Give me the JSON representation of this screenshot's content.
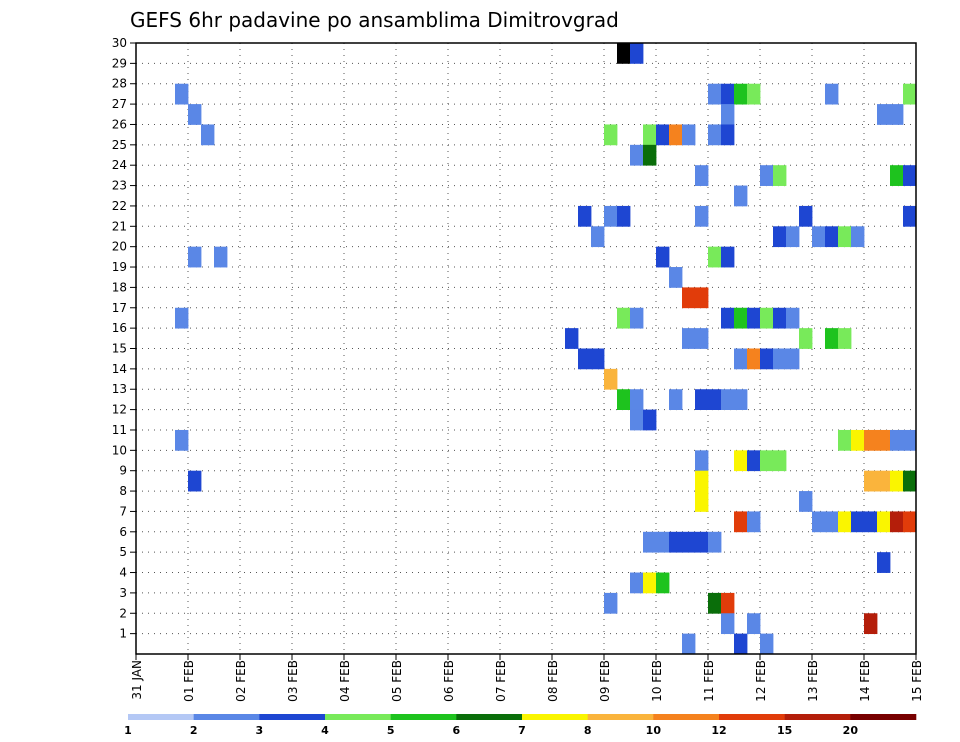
{
  "chart_data": {
    "type": "heatmap",
    "title": "GEFS 6hr padavine po ansamblima Dimitrovgrad",
    "xlabel": "",
    "ylabel": "",
    "x_ticks": [
      "31 JAN",
      "01 FEB",
      "02 FEB",
      "03 FEB",
      "04 FEB",
      "05 FEB",
      "06 FEB",
      "07 FEB",
      "08 FEB",
      "09 FEB",
      "10 FEB",
      "11 FEB",
      "12 FEB",
      "13 FEB",
      "14 FEB",
      "15 FEB"
    ],
    "y_ticks": [
      "1",
      "2",
      "3",
      "4",
      "5",
      "6",
      "7",
      "8",
      "9",
      "10",
      "11",
      "12",
      "13",
      "14",
      "15",
      "16",
      "17",
      "18",
      "19",
      "20",
      "21",
      "22",
      "23",
      "24",
      "25",
      "26",
      "27",
      "28",
      "29",
      "30"
    ],
    "x_range_steps": [
      0,
      60
    ],
    "y_range": [
      0,
      30
    ],
    "grid": true,
    "legend": "bottom",
    "colorbar": {
      "ticks": [
        "1",
        "2",
        "3",
        "4",
        "5",
        "6",
        "7",
        "8",
        "10",
        "12",
        "15",
        "20"
      ],
      "colors": [
        "#b4c8f5",
        "#5a87e6",
        "#1e46d2",
        "#78ea5a",
        "#1ec31e",
        "#0a6e0a",
        "#faf500",
        "#fab43c",
        "#f5821e",
        "#e13c0a",
        "#b41e0a",
        "#780000"
      ]
    },
    "cells": [
      {
        "t": 3,
        "m": 27,
        "v": 1
      },
      {
        "t": 4,
        "m": 26,
        "v": 1
      },
      {
        "t": 5,
        "m": 25,
        "v": 1
      },
      {
        "t": 4,
        "m": 19,
        "v": 1
      },
      {
        "t": 6,
        "m": 19,
        "v": 1
      },
      {
        "t": 3,
        "m": 16,
        "v": 1
      },
      {
        "t": 3,
        "m": 10,
        "v": 1
      },
      {
        "t": 4,
        "m": 8,
        "v": 2
      },
      {
        "t": 37,
        "m": 29,
        "v": 12
      },
      {
        "t": 38,
        "m": 29,
        "v": 2
      },
      {
        "t": 44,
        "m": 27,
        "v": 1
      },
      {
        "t": 45,
        "m": 27,
        "v": 2
      },
      {
        "t": 46,
        "m": 27,
        "v": 4
      },
      {
        "t": 47,
        "m": 27,
        "v": 3
      },
      {
        "t": 53,
        "m": 27,
        "v": 1
      },
      {
        "t": 59,
        "m": 27,
        "v": 3
      },
      {
        "t": 45,
        "m": 26,
        "v": 1
      },
      {
        "t": 57,
        "m": 26,
        "v": 1
      },
      {
        "t": 58,
        "m": 26,
        "v": 1
      },
      {
        "t": 36,
        "m": 25,
        "v": 3
      },
      {
        "t": 39,
        "m": 25,
        "v": 3
      },
      {
        "t": 40,
        "m": 25,
        "v": 2
      },
      {
        "t": 41,
        "m": 25,
        "v": 8
      },
      {
        "t": 42,
        "m": 25,
        "v": 1
      },
      {
        "t": 44,
        "m": 25,
        "v": 1
      },
      {
        "t": 45,
        "m": 25,
        "v": 2
      },
      {
        "t": 38,
        "m": 24,
        "v": 1
      },
      {
        "t": 39,
        "m": 24,
        "v": 5
      },
      {
        "t": 43,
        "m": 23,
        "v": 1
      },
      {
        "t": 48,
        "m": 23,
        "v": 1
      },
      {
        "t": 49,
        "m": 23,
        "v": 3
      },
      {
        "t": 58,
        "m": 23,
        "v": 4
      },
      {
        "t": 59,
        "m": 23,
        "v": 2
      },
      {
        "t": 46,
        "m": 22,
        "v": 1
      },
      {
        "t": 34,
        "m": 21,
        "v": 2
      },
      {
        "t": 36,
        "m": 21,
        "v": 1
      },
      {
        "t": 37,
        "m": 21,
        "v": 2
      },
      {
        "t": 43,
        "m": 21,
        "v": 1
      },
      {
        "t": 51,
        "m": 21,
        "v": 2
      },
      {
        "t": 59,
        "m": 21,
        "v": 2
      },
      {
        "t": 35,
        "m": 20,
        "v": 1
      },
      {
        "t": 49,
        "m": 20,
        "v": 2
      },
      {
        "t": 50,
        "m": 20,
        "v": 1
      },
      {
        "t": 52,
        "m": 20,
        "v": 1
      },
      {
        "t": 53,
        "m": 20,
        "v": 2
      },
      {
        "t": 54,
        "m": 20,
        "v": 3
      },
      {
        "t": 55,
        "m": 20,
        "v": 1
      },
      {
        "t": 40,
        "m": 19,
        "v": 2
      },
      {
        "t": 44,
        "m": 19,
        "v": 3
      },
      {
        "t": 45,
        "m": 19,
        "v": 2
      },
      {
        "t": 41,
        "m": 18,
        "v": 1
      },
      {
        "t": 42,
        "m": 17,
        "v": 9
      },
      {
        "t": 43,
        "m": 17,
        "v": 9
      },
      {
        "t": 37,
        "m": 16,
        "v": 3
      },
      {
        "t": 38,
        "m": 16,
        "v": 1
      },
      {
        "t": 45,
        "m": 16,
        "v": 2
      },
      {
        "t": 46,
        "m": 16,
        "v": 4
      },
      {
        "t": 47,
        "m": 16,
        "v": 2
      },
      {
        "t": 48,
        "m": 16,
        "v": 3
      },
      {
        "t": 49,
        "m": 16,
        "v": 2
      },
      {
        "t": 50,
        "m": 16,
        "v": 1
      },
      {
        "t": 33,
        "m": 15,
        "v": 2
      },
      {
        "t": 42,
        "m": 15,
        "v": 1
      },
      {
        "t": 43,
        "m": 15,
        "v": 1
      },
      {
        "t": 51,
        "m": 15,
        "v": 3
      },
      {
        "t": 53,
        "m": 15,
        "v": 4
      },
      {
        "t": 54,
        "m": 15,
        "v": 3
      },
      {
        "t": 34,
        "m": 14,
        "v": 2
      },
      {
        "t": 35,
        "m": 14,
        "v": 2
      },
      {
        "t": 46,
        "m": 14,
        "v": 1
      },
      {
        "t": 47,
        "m": 14,
        "v": 8
      },
      {
        "t": 48,
        "m": 14,
        "v": 2
      },
      {
        "t": 49,
        "m": 14,
        "v": 1
      },
      {
        "t": 50,
        "m": 14,
        "v": 1
      },
      {
        "t": 36,
        "m": 13,
        "v": 7
      },
      {
        "t": 37,
        "m": 12,
        "v": 4
      },
      {
        "t": 38,
        "m": 12,
        "v": 1
      },
      {
        "t": 41,
        "m": 12,
        "v": 1
      },
      {
        "t": 43,
        "m": 12,
        "v": 2
      },
      {
        "t": 44,
        "m": 12,
        "v": 2
      },
      {
        "t": 45,
        "m": 12,
        "v": 1
      },
      {
        "t": 46,
        "m": 12,
        "v": 1
      },
      {
        "t": 38,
        "m": 11,
        "v": 1
      },
      {
        "t": 39,
        "m": 11,
        "v": 2
      },
      {
        "t": 54,
        "m": 10,
        "v": 3
      },
      {
        "t": 55,
        "m": 10,
        "v": 6
      },
      {
        "t": 56,
        "m": 10,
        "v": 8
      },
      {
        "t": 57,
        "m": 10,
        "v": 8
      },
      {
        "t": 58,
        "m": 10,
        "v": 1
      },
      {
        "t": 59,
        "m": 10,
        "v": 1
      },
      {
        "t": 43,
        "m": 9,
        "v": 1
      },
      {
        "t": 46,
        "m": 9,
        "v": 6
      },
      {
        "t": 47,
        "m": 9,
        "v": 2
      },
      {
        "t": 48,
        "m": 9,
        "v": 3
      },
      {
        "t": 49,
        "m": 9,
        "v": 3
      },
      {
        "t": 43,
        "m": 8,
        "v": 6
      },
      {
        "t": 56,
        "m": 8,
        "v": 7
      },
      {
        "t": 57,
        "m": 8,
        "v": 7
      },
      {
        "t": 58,
        "m": 8,
        "v": 6
      },
      {
        "t": 59,
        "m": 8,
        "v": 5
      },
      {
        "t": 43,
        "m": 7,
        "v": 6
      },
      {
        "t": 51,
        "m": 7,
        "v": 1
      },
      {
        "t": 46,
        "m": 6,
        "v": 9
      },
      {
        "t": 47,
        "m": 6,
        "v": 1
      },
      {
        "t": 52,
        "m": 6,
        "v": 1
      },
      {
        "t": 53,
        "m": 6,
        "v": 1
      },
      {
        "t": 54,
        "m": 6,
        "v": 6
      },
      {
        "t": 55,
        "m": 6,
        "v": 2
      },
      {
        "t": 56,
        "m": 6,
        "v": 2
      },
      {
        "t": 57,
        "m": 6,
        "v": 6
      },
      {
        "t": 58,
        "m": 6,
        "v": 10
      },
      {
        "t": 59,
        "m": 6,
        "v": 9
      },
      {
        "t": 39,
        "m": 5,
        "v": 1
      },
      {
        "t": 40,
        "m": 5,
        "v": 1
      },
      {
        "t": 41,
        "m": 5,
        "v": 2
      },
      {
        "t": 42,
        "m": 5,
        "v": 2
      },
      {
        "t": 43,
        "m": 5,
        "v": 2
      },
      {
        "t": 44,
        "m": 5,
        "v": 1
      },
      {
        "t": 57,
        "m": 4,
        "v": 2
      },
      {
        "t": 38,
        "m": 3,
        "v": 1
      },
      {
        "t": 39,
        "m": 3,
        "v": 6
      },
      {
        "t": 40,
        "m": 3,
        "v": 4
      },
      {
        "t": 36,
        "m": 2,
        "v": 1
      },
      {
        "t": 44,
        "m": 2,
        "v": 5
      },
      {
        "t": 45,
        "m": 2,
        "v": 9
      },
      {
        "t": 45,
        "m": 1,
        "v": 1
      },
      {
        "t": 47,
        "m": 1,
        "v": 1
      },
      {
        "t": 56,
        "m": 1,
        "v": 10
      },
      {
        "t": 42,
        "m": 0,
        "v": 1
      },
      {
        "t": 46,
        "m": 0,
        "v": 2
      },
      {
        "t": 48,
        "m": 0,
        "v": 1
      }
    ]
  }
}
